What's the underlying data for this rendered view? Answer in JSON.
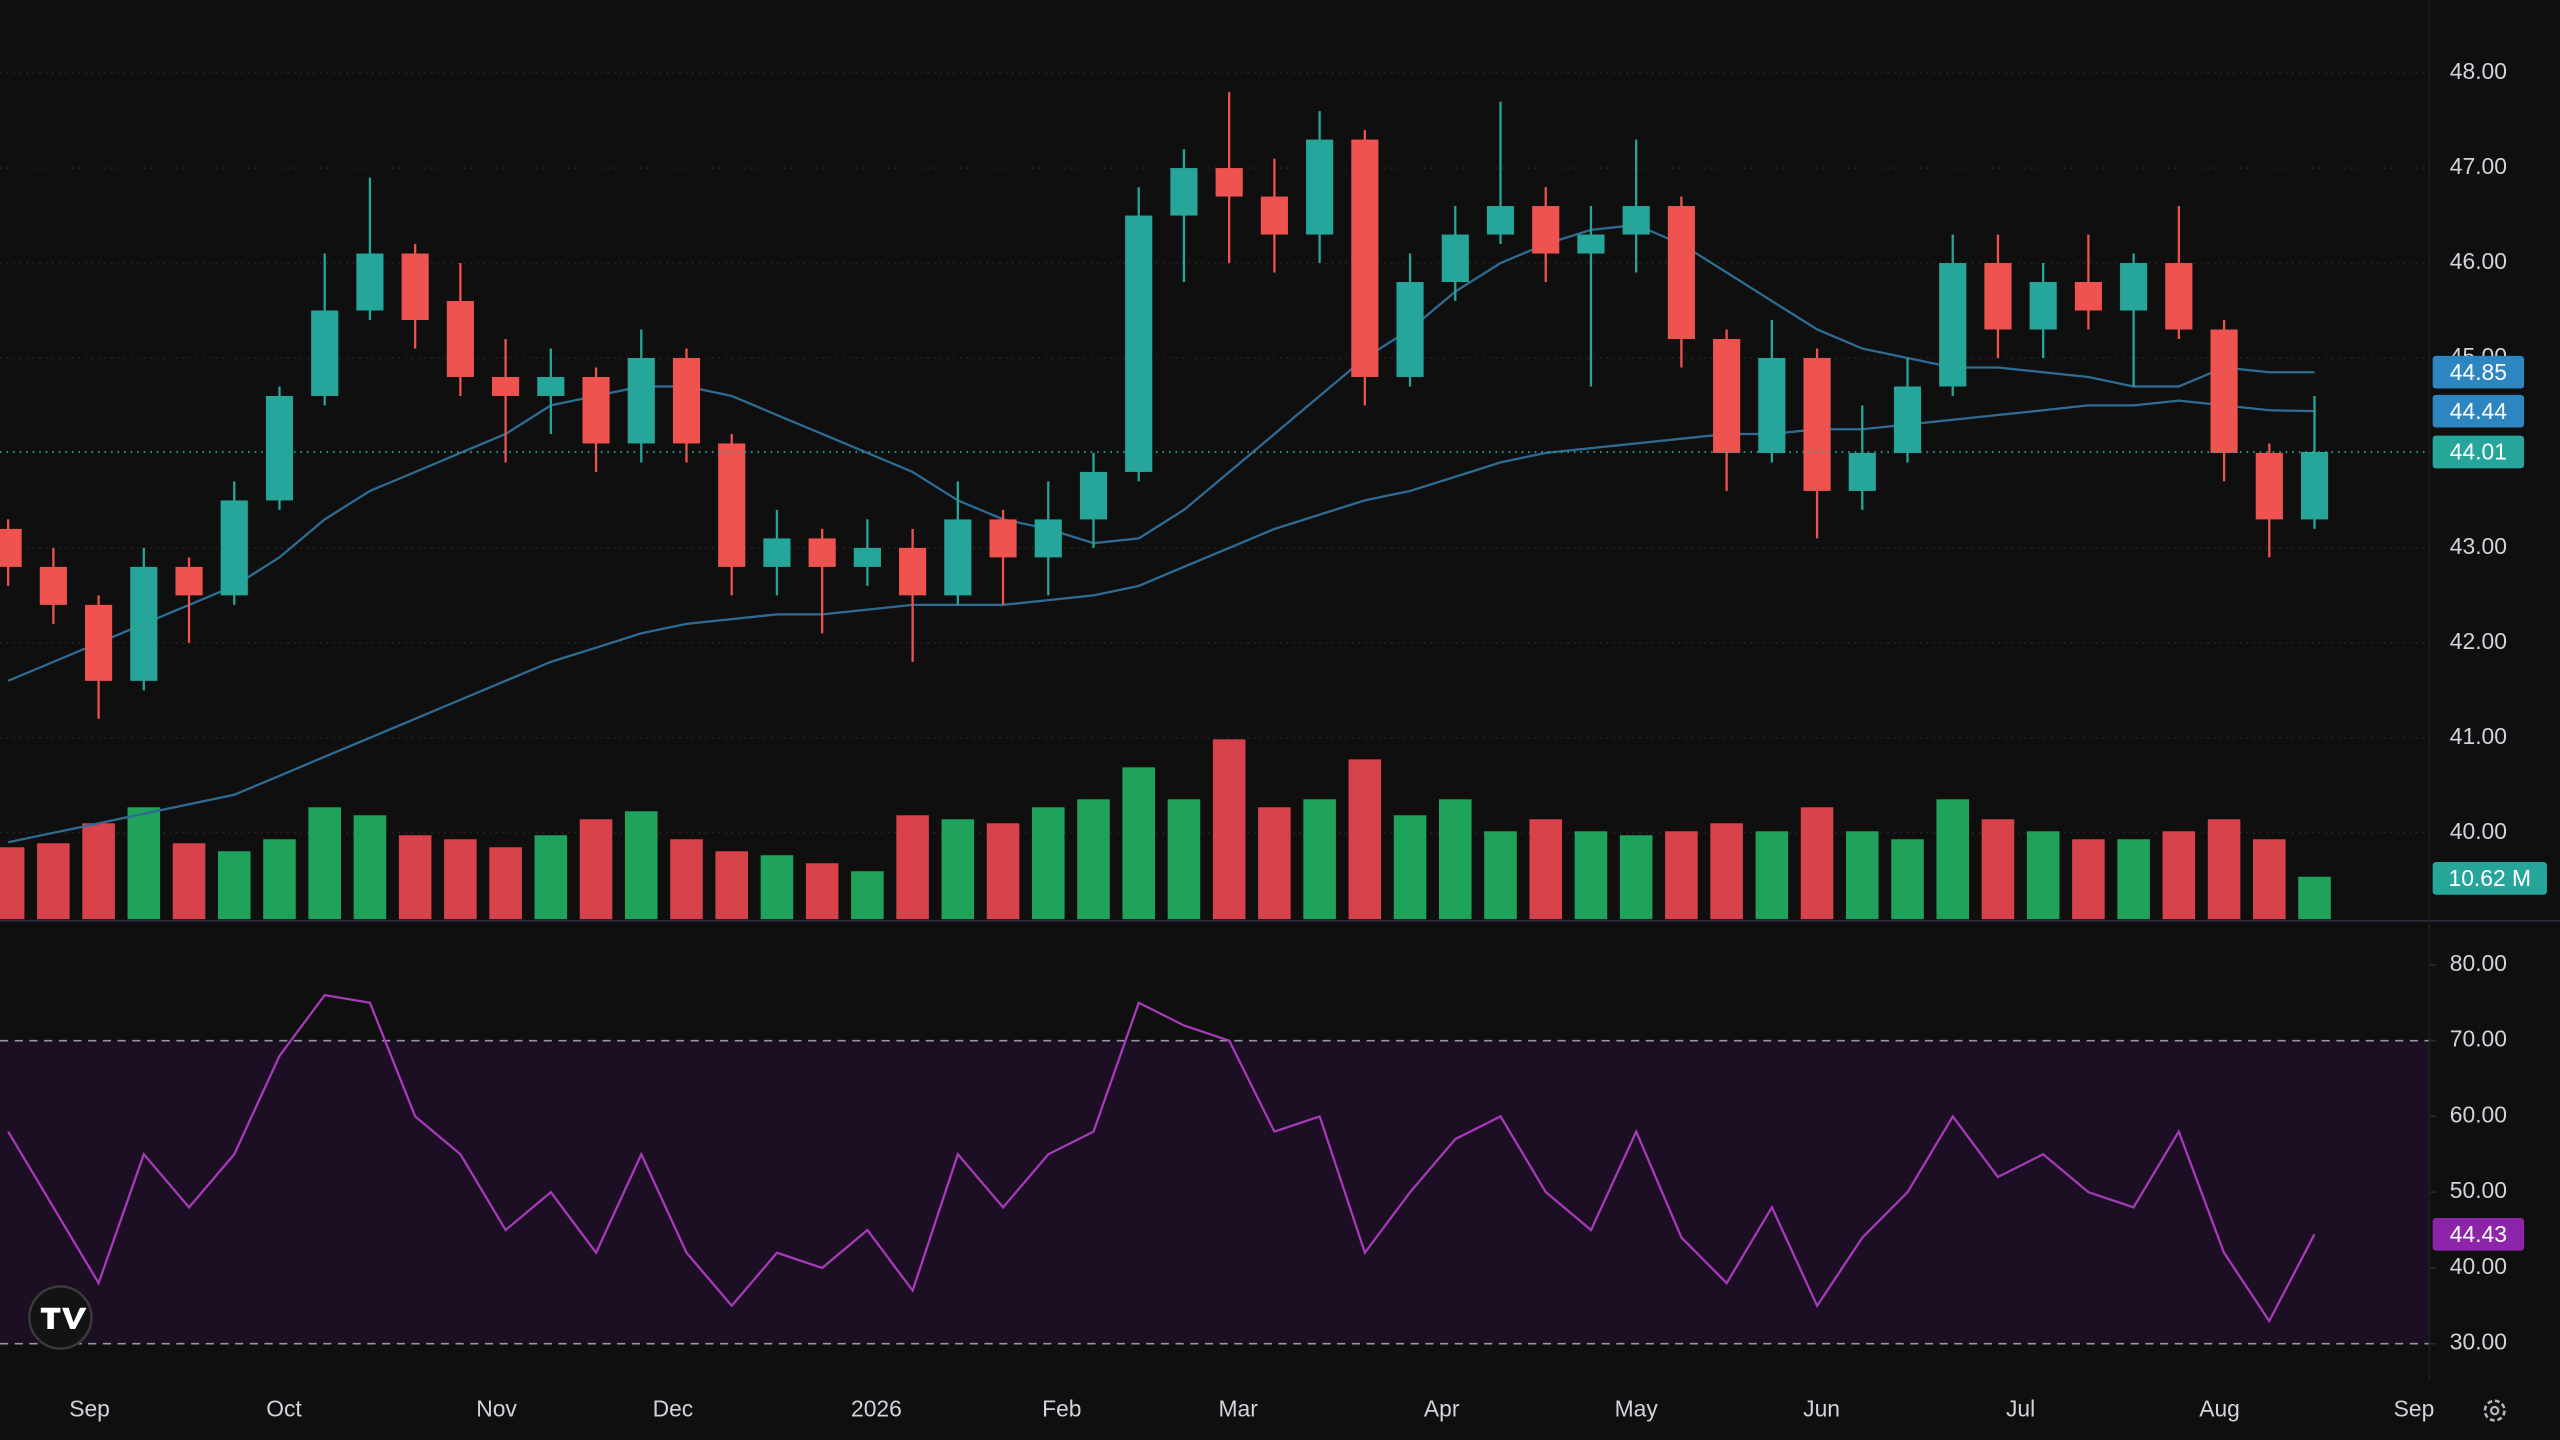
{
  "chart_data": [
    {
      "type": "candlestick",
      "xlim": [
        -0.18,
        53.54
      ],
      "xticks": [
        {
          "value": 1.8,
          "label": "Sep"
        },
        {
          "value": 6.1,
          "label": "Oct"
        },
        {
          "value": 10.8,
          "label": "Nov"
        },
        {
          "value": 14.7,
          "label": "Dec"
        },
        {
          "value": 19.2,
          "label": "2026"
        },
        {
          "value": 23.3,
          "label": "Feb"
        },
        {
          "value": 27.2,
          "label": "Mar"
        },
        {
          "value": 31.7,
          "label": "Apr"
        },
        {
          "value": 36,
          "label": "May"
        },
        {
          "value": 40.1,
          "label": "Jun"
        },
        {
          "value": 44.5,
          "label": "Jul"
        },
        {
          "value": 48.9,
          "label": "Aug"
        },
        {
          "value": 53.2,
          "label": "Sep"
        }
      ],
      "ylim": [
        39.09,
        48.77
      ],
      "yticks": [
        {
          "value": 40,
          "label": "40.00"
        },
        {
          "value": 41,
          "label": "41.00"
        },
        {
          "value": 42,
          "label": "42.00"
        },
        {
          "value": 43,
          "label": "43.00"
        },
        {
          "value": 44,
          "label": "44.00"
        },
        {
          "value": 45,
          "label": "45.00"
        },
        {
          "value": 46,
          "label": "46.00"
        },
        {
          "value": 47,
          "label": "47.00"
        },
        {
          "value": 48,
          "label": "48.00"
        }
      ],
      "grid": true,
      "open": [
        43.2,
        42.8,
        42.4,
        41.6,
        42.8,
        42.5,
        43.5,
        44.6,
        45.5,
        46.1,
        45.6,
        44.8,
        44.6,
        44.8,
        44.1,
        45.0,
        44.1,
        42.8,
        43.1,
        42.8,
        43.0,
        42.5,
        43.3,
        42.9,
        43.3,
        43.8,
        46.5,
        47.0,
        46.7,
        46.3,
        47.3,
        44.8,
        45.8,
        46.3,
        46.6,
        46.1,
        46.3,
        46.6,
        45.2,
        44.0,
        45.0,
        43.6,
        44.0,
        44.7,
        46.0,
        45.3,
        45.8,
        45.5,
        46.0,
        45.3,
        44.0,
        43.3
      ],
      "high": [
        43.3,
        43.0,
        42.5,
        43.0,
        42.9,
        43.7,
        44.7,
        46.1,
        46.9,
        46.2,
        46.0,
        45.2,
        45.1,
        44.9,
        45.3,
        45.1,
        44.2,
        43.4,
        43.2,
        43.3,
        43.2,
        43.7,
        43.4,
        43.7,
        44.0,
        46.8,
        47.2,
        47.8,
        47.1,
        47.6,
        47.4,
        46.1,
        46.6,
        47.7,
        46.8,
        46.6,
        47.3,
        46.7,
        45.3,
        45.4,
        45.1,
        44.5,
        45.0,
        46.3,
        46.3,
        46.0,
        46.3,
        46.1,
        46.6,
        45.4,
        44.1,
        44.6
      ],
      "low": [
        42.6,
        42.2,
        41.2,
        41.5,
        42.0,
        42.4,
        43.4,
        44.5,
        45.4,
        45.1,
        44.6,
        43.9,
        44.2,
        43.8,
        43.9,
        43.9,
        42.5,
        42.5,
        42.1,
        42.6,
        41.8,
        42.4,
        42.4,
        42.5,
        43.0,
        43.7,
        45.8,
        46.0,
        45.9,
        46.0,
        44.5,
        44.7,
        45.6,
        46.2,
        45.8,
        44.7,
        45.9,
        44.9,
        43.6,
        43.9,
        43.1,
        43.4,
        43.9,
        44.6,
        45.0,
        45.0,
        45.3,
        44.7,
        45.2,
        43.7,
        42.9,
        43.2
      ],
      "close": [
        42.8,
        42.4,
        41.6,
        42.8,
        42.5,
        43.5,
        44.6,
        45.5,
        46.1,
        45.4,
        44.8,
        44.6,
        44.8,
        44.1,
        45.0,
        44.1,
        42.8,
        43.1,
        42.8,
        43.0,
        42.5,
        43.3,
        42.9,
        43.3,
        43.8,
        46.5,
        47.0,
        46.7,
        46.3,
        47.3,
        44.8,
        45.8,
        46.3,
        46.6,
        46.1,
        46.3,
        46.6,
        45.2,
        44.0,
        45.0,
        43.6,
        44.0,
        44.7,
        46.0,
        45.3,
        45.8,
        45.5,
        46.0,
        45.3,
        44.0,
        43.3,
        44.01
      ],
      "up_color": "#26a69a",
      "down_color": "#ef5350",
      "volume": [
        18,
        19,
        24,
        28,
        19,
        17,
        20,
        28,
        26,
        21,
        20,
        18,
        21,
        25,
        27,
        20,
        17,
        16,
        14,
        12,
        26,
        25,
        24,
        28,
        30,
        38,
        30,
        45,
        28,
        30,
        40,
        26,
        30,
        22,
        25,
        22,
        21,
        22,
        24,
        22,
        28,
        22,
        20,
        30,
        25,
        22,
        20,
        20,
        22,
        25,
        20,
        10.62
      ],
      "volume_lim": [
        0,
        230
      ],
      "volume_up_color": "#1fa35a",
      "volume_down_color": "#d8434b",
      "volume_last_label": "10.62 M",
      "series": [
        {
          "color": "#2e6c93",
          "tag_color": "#2e86c1",
          "values": [
            41.6,
            41.8,
            42.0,
            42.2,
            42.4,
            42.6,
            42.9,
            43.3,
            43.6,
            43.8,
            44.0,
            44.2,
            44.5,
            44.6,
            44.7,
            44.7,
            44.6,
            44.4,
            44.2,
            44.0,
            43.8,
            43.5,
            43.3,
            43.2,
            43.05,
            43.1,
            43.4,
            43.8,
            44.2,
            44.6,
            45.0,
            45.3,
            45.7,
            46.0,
            46.2,
            46.35,
            46.4,
            46.2,
            45.9,
            45.6,
            45.3,
            45.1,
            45.0,
            44.9,
            44.9,
            44.85,
            44.8,
            44.7,
            44.7,
            44.9,
            44.85,
            44.85
          ]
        },
        {
          "color": "#2e6c93",
          "tag_color": "#2e86c1",
          "values": [
            39.9,
            40.0,
            40.1,
            40.2,
            40.3,
            40.4,
            40.6,
            40.8,
            41.0,
            41.2,
            41.4,
            41.6,
            41.8,
            41.95,
            42.1,
            42.2,
            42.25,
            42.3,
            42.3,
            42.35,
            42.4,
            42.4,
            42.4,
            42.45,
            42.5,
            42.6,
            42.8,
            43.0,
            43.2,
            43.35,
            43.5,
            43.6,
            43.75,
            43.9,
            44.0,
            44.05,
            44.1,
            44.15,
            44.2,
            44.2,
            44.25,
            44.25,
            44.3,
            44.35,
            44.4,
            44.45,
            44.5,
            44.5,
            44.55,
            44.5,
            44.45,
            44.44
          ]
        }
      ]
    },
    {
      "type": "line",
      "values": [
        58,
        48,
        38,
        55,
        48,
        55,
        68,
        76,
        75,
        60,
        55,
        45,
        50,
        42,
        55,
        42,
        35,
        42,
        40,
        45,
        37,
        55,
        48,
        55,
        58,
        75,
        72,
        70,
        58,
        60,
        42,
        50,
        57,
        60,
        50,
        45,
        58,
        44,
        38,
        48,
        35,
        44,
        50,
        60,
        52,
        55,
        50,
        48,
        58,
        42,
        33,
        44.43
      ],
      "color": "#a63ab8",
      "tag_color": "#8e24aa",
      "ylim": [
        25.26,
        85.6
      ],
      "yticks": [
        {
          "value": 30,
          "label": "30.00"
        },
        {
          "value": 40,
          "label": "40.00"
        },
        {
          "value": 50,
          "label": "50.00"
        },
        {
          "value": 60,
          "label": "60.00"
        },
        {
          "value": 70,
          "label": "70.00"
        },
        {
          "value": 80,
          "label": "80.00"
        }
      ],
      "band": [
        30,
        70
      ],
      "band_color": "#1c0f24"
    }
  ]
}
